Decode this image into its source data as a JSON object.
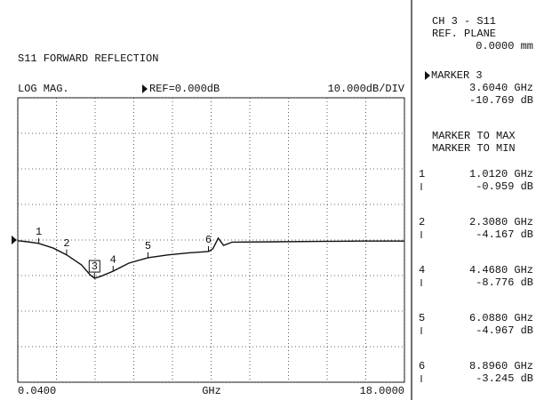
{
  "chart_data": {
    "type": "line",
    "title": "S11 FORWARD REFLECTION",
    "format": "LOG MAG.",
    "reference": 0,
    "reference_label": "REF=0.000dB",
    "scale_label": "10.000dB/DIV",
    "x_label": "GHz",
    "xlim": [
      0.04,
      18
    ],
    "xticks": [
      {
        "value": 0.04,
        "label": "0.0400"
      },
      1.836,
      3.632,
      5.428,
      7.224,
      9.02,
      10.816,
      12.612,
      14.408,
      16.204,
      {
        "value": 18,
        "label": "18.0000"
      }
    ],
    "ylim": [
      -40,
      40
    ],
    "yticks": [
      -40,
      -30,
      -20,
      -10,
      0,
      10,
      20,
      30,
      40
    ],
    "grid": true,
    "series": [
      {
        "name": "S11",
        "color": "#111111",
        "x": [
          0.04,
          0.5,
          1.012,
          1.7,
          2.308,
          3.0,
          3.4,
          3.604,
          3.9,
          4.468,
          5.2,
          6.088,
          7.0,
          8.0,
          8.896,
          9.1,
          9.35,
          9.6,
          10.0,
          12.0,
          14.0,
          16.0,
          18.0
        ],
        "values": [
          -0.2,
          -0.5,
          -0.959,
          -2.3,
          -4.167,
          -7.0,
          -9.8,
          -10.769,
          -10.2,
          -8.776,
          -6.5,
          -4.967,
          -4.2,
          -3.6,
          -3.245,
          -2.5,
          0.5,
          -1.5,
          -0.6,
          -0.5,
          -0.4,
          -0.3,
          -0.3
        ]
      }
    ],
    "markers": [
      {
        "name": "1",
        "x": 1.012,
        "value": -0.959
      },
      {
        "name": "2",
        "x": 2.308,
        "value": -4.167
      },
      {
        "name": "3",
        "x": 3.604,
        "value": -10.769
      },
      {
        "name": "4",
        "x": 4.468,
        "value": -8.776
      },
      {
        "name": "5",
        "x": 6.088,
        "value": -4.967
      },
      {
        "name": "6",
        "x": 8.896,
        "value": -3.245
      }
    ]
  },
  "side_panel": {
    "channel": "CH 3 - S11",
    "ref_plane": "REF. PLANE",
    "ref_plane_value": "0.0000 mm",
    "active_marker": {
      "title": "MARKER 3",
      "freq": "3.6040 GHz",
      "value": "-10.769 dB"
    },
    "functions": [
      "MARKER TO MAX",
      "MARKER TO MIN"
    ],
    "marker_list": [
      {
        "name": "1",
        "freq": "1.0120 GHz",
        "value": "-0.959 dB"
      },
      {
        "name": "2",
        "freq": "2.3080 GHz",
        "value": "-4.167 dB"
      },
      {
        "name": "4",
        "freq": "4.4680 GHz",
        "value": "-8.776 dB"
      },
      {
        "name": "5",
        "freq": "6.0880 GHz",
        "value": "-4.967 dB"
      },
      {
        "name": "6",
        "freq": "8.8960 GHz",
        "value": "-3.245 dB"
      }
    ]
  }
}
